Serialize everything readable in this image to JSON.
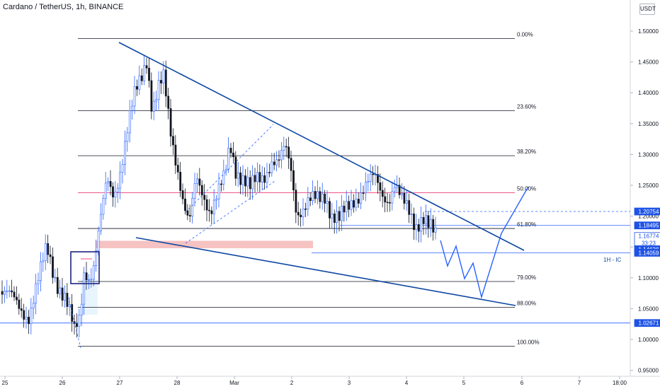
{
  "header": {
    "title": "Cardano / TetherUS, 1h, BINANCE",
    "currency": "USDT"
  },
  "chart_data": {
    "type": "candlestick",
    "symbol": "Cardano / TetherUS",
    "timeframe": "1h",
    "exchange": "BINANCE",
    "ylim": [
      0.95,
      1.52
    ],
    "y_ticks": [
      "1.50000",
      "1.45000",
      "1.40000",
      "1.35000",
      "1.30000",
      "1.25000",
      "1.20000",
      "1.15000",
      "1.10000",
      "1.05000",
      "1.00000",
      "0.95000"
    ],
    "x_ticks": [
      "25",
      "26",
      "27",
      "28",
      "Mar",
      "2",
      "3",
      "4",
      "5",
      "6",
      "7",
      "18:00"
    ],
    "fib_levels": [
      {
        "label": "0.00%",
        "price": 1.488
      },
      {
        "label": "23.60%",
        "price": 1.371
      },
      {
        "label": "38.20%",
        "price": 1.298
      },
      {
        "label": "50.00%",
        "price": 1.238,
        "color": "#e91e63"
      },
      {
        "label": "61.80%",
        "price": 1.18
      },
      {
        "label": "79.00%",
        "price": 1.094
      },
      {
        "label": "88.00%",
        "price": 1.052
      },
      {
        "label": "100.00%",
        "price": 0.989
      }
    ],
    "price_labels": [
      {
        "text": "1.20754",
        "price": 1.20754,
        "style": "blue"
      },
      {
        "text": "1.18495",
        "price": 1.18495,
        "style": "blue"
      },
      {
        "text": "1.16774",
        "price": 1.16774,
        "style": "white",
        "sub": "33:23"
      },
      {
        "text": "1.14636",
        "price": 1.14636,
        "style": "blue"
      },
      {
        "text": "1.14059",
        "price": 1.14059,
        "style": "blue"
      },
      {
        "text": "1.02671",
        "price": 1.02671,
        "style": "blue"
      }
    ],
    "annotations": [
      "1H - IC"
    ],
    "colors": {
      "up": "#2962ff",
      "down": "#131722",
      "trend": "#0d47a1",
      "fib": "#131722",
      "fib50": "#e91e63",
      "zone": "#f4b7b7"
    }
  }
}
